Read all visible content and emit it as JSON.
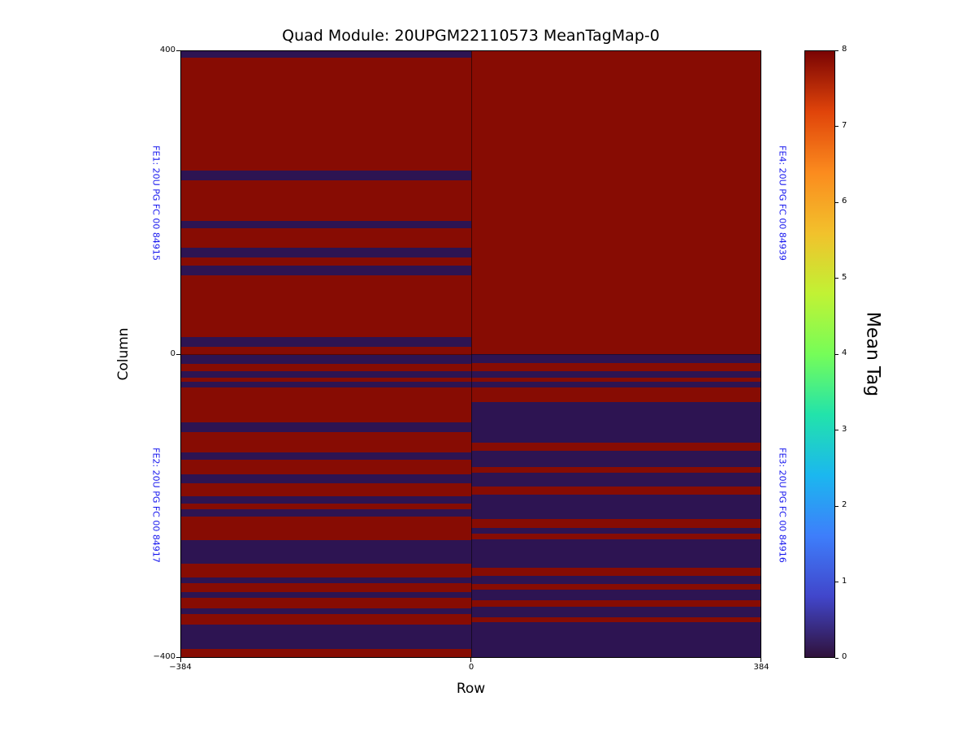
{
  "title": "Quad Module: 20UPGM22110573 MeanTagMap-0",
  "axes": {
    "xlabel": "Row",
    "ylabel": "Column",
    "x_ticks": [
      "−384",
      "0",
      "384"
    ],
    "y_ticks": [
      "400",
      "0",
      "−400"
    ]
  },
  "fe_labels": {
    "fe1": "FE1: 20U PG FC 00 84915",
    "fe2": "FE2: 20U PG FC 00 84917",
    "fe3": "FE3: 20U PG FC 00 84916",
    "fe4": "FE4: 20U PG FC 00 84939"
  },
  "colorbar": {
    "label": "Mean Tag",
    "ticks": [
      "8",
      "7",
      "6",
      "5",
      "4",
      "3",
      "2",
      "1",
      "0"
    ],
    "range": [
      0,
      8
    ]
  },
  "chart_data": {
    "type": "heatmap",
    "title": "Quad Module: 20UPGM22110573 MeanTagMap-0",
    "xlabel": "Row",
    "ylabel": "Column",
    "xlim": [
      -384,
      384
    ],
    "ylim": [
      -400,
      400
    ],
    "grid": false,
    "colorbar": {
      "label": "Mean Tag",
      "range": [
        0,
        8
      ],
      "colormap": "turbo",
      "colormap_stops": [
        "#30123b",
        "#4146cb",
        "#3e7efb",
        "#1bb7ef",
        "#22e3ab",
        "#76fd58",
        "#c1f234",
        "#f2c12c",
        "#fb8b1e",
        "#e0440a",
        "#7a0403"
      ]
    },
    "value_colors": {
      "0": "#2d1452",
      "8": "#870c03"
    },
    "quadrants": [
      {
        "name": "FE1",
        "label": "FE1: 20U PG FC 00 84915",
        "position": "top-left",
        "row_range": [
          -384,
          0
        ],
        "col_range": [
          0,
          400
        ],
        "base_value": 8,
        "stripes": [
          {
            "col_range": [
              391,
              400
            ],
            "value": 0
          },
          {
            "col_range": [
              230,
              242
            ],
            "value": 0
          },
          {
            "col_range": [
              166,
              176
            ],
            "value": 0
          },
          {
            "col_range": [
              128,
              140
            ],
            "value": 0
          },
          {
            "col_range": [
              104,
              117
            ],
            "value": 0
          },
          {
            "col_range": [
              10,
              23
            ],
            "value": 0
          }
        ]
      },
      {
        "name": "FE4",
        "label": "FE4: 20U PG FC 00 84939",
        "position": "top-right",
        "row_range": [
          0,
          384
        ],
        "col_range": [
          0,
          400
        ],
        "base_value": 8,
        "stripes": []
      },
      {
        "name": "FE2",
        "label": "FE2: 20U PG FC 00 84917",
        "position": "bottom-left",
        "row_range": [
          -384,
          0
        ],
        "col_range": [
          -400,
          0
        ],
        "base_value": 8,
        "stripes": [
          {
            "col_range": [
              -13,
              -1
            ],
            "value": 0
          },
          {
            "col_range": [
              -31,
              -22
            ],
            "value": 0
          },
          {
            "col_range": [
              -44,
              -36
            ],
            "value": 0
          },
          {
            "col_range": [
              -103,
              -90
            ],
            "value": 0
          },
          {
            "col_range": [
              -139,
              -130
            ],
            "value": 0
          },
          {
            "col_range": [
              -170,
              -159
            ],
            "value": 0
          },
          {
            "col_range": [
              -197,
              -188
            ],
            "value": 0
          },
          {
            "col_range": [
              -214,
              -205
            ],
            "value": 0
          },
          {
            "col_range": [
              -277,
              -246
            ],
            "value": 0
          },
          {
            "col_range": [
              -302,
              -295
            ],
            "value": 0
          },
          {
            "col_range": [
              -322,
              -314
            ],
            "value": 0
          },
          {
            "col_range": [
              -343,
              -336
            ],
            "value": 0
          },
          {
            "col_range": [
              -389,
              -357
            ],
            "value": 0
          }
        ]
      },
      {
        "name": "FE3",
        "label": "FE3: 20U PG FC 00 84916",
        "position": "bottom-right",
        "row_range": [
          0,
          384
        ],
        "col_range": [
          -400,
          0
        ],
        "base_value": 0,
        "stripes": [
          {
            "col_range": [
              -22,
              -12
            ],
            "value": 8
          },
          {
            "col_range": [
              -36,
              -31
            ],
            "value": 8
          },
          {
            "col_range": [
              -63,
              -44
            ],
            "value": 8
          },
          {
            "col_range": [
              -128,
              -117
            ],
            "value": 8
          },
          {
            "col_range": [
              -157,
              -149
            ],
            "value": 8
          },
          {
            "col_range": [
              -186,
              -175
            ],
            "value": 8
          },
          {
            "col_range": [
              -229,
              -218
            ],
            "value": 8
          },
          {
            "col_range": [
              -245,
              -237
            ],
            "value": 8
          },
          {
            "col_range": [
              -293,
              -282
            ],
            "value": 8
          },
          {
            "col_range": [
              -311,
              -304
            ],
            "value": 8
          },
          {
            "col_range": [
              -333,
              -325
            ],
            "value": 8
          },
          {
            "col_range": [
              -354,
              -347
            ],
            "value": 8
          }
        ]
      }
    ]
  }
}
